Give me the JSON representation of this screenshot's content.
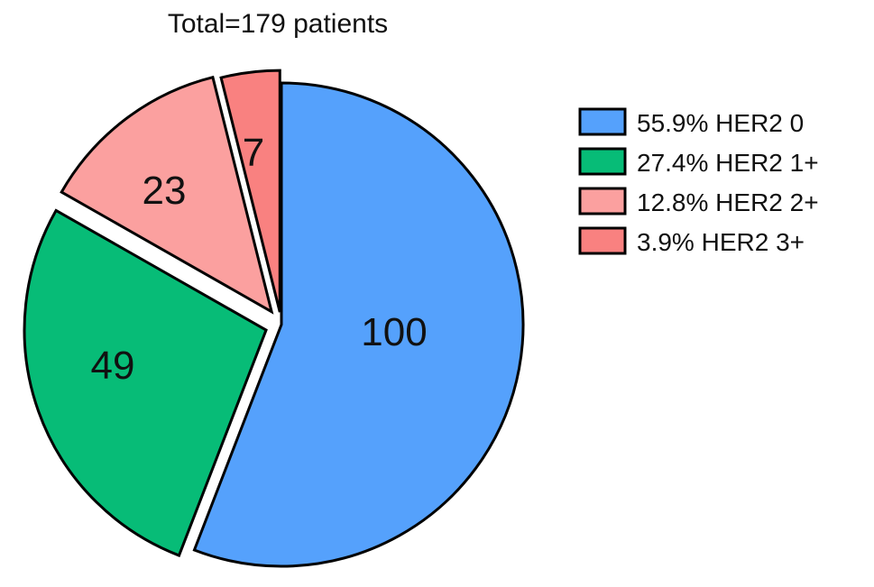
{
  "chart_data": {
    "type": "pie",
    "title": "Total=179 patients",
    "slices": [
      {
        "value": 100,
        "label": "100",
        "legend": "55.9% HER2 0",
        "color": "#55a1fc"
      },
      {
        "value": 49,
        "label": "49",
        "legend": "27.4% HER2 1+",
        "color": "#07bc77"
      },
      {
        "value": 23,
        "label": "23",
        "legend": "12.8% HER2 2+",
        "color": "#fba09f"
      },
      {
        "value": 7,
        "label": "7",
        "legend": "3.9% HER2 3+",
        "color": "#f98180"
      }
    ],
    "legend_position": "right"
  }
}
